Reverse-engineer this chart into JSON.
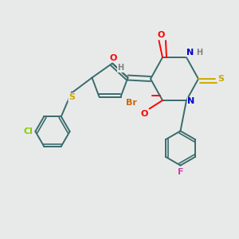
{
  "bg_color": "#e8eaea",
  "atom_colors": {
    "C": "#3a6b6b",
    "H": "#808080",
    "O": "#ff0000",
    "N": "#0000cc",
    "S": "#ccaa00",
    "Br": "#cc6600",
    "Cl": "#88cc00",
    "F": "#cc44aa"
  },
  "bond_color": "#3a6b6b",
  "figsize": [
    3.0,
    3.0
  ],
  "dpi": 100
}
